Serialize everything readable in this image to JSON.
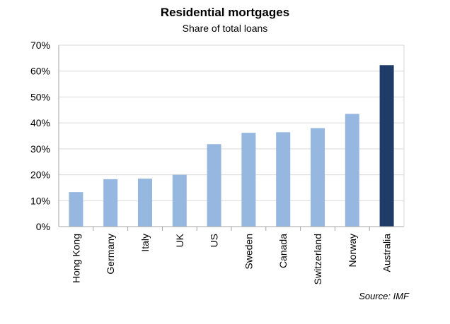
{
  "chart_data": {
    "type": "bar",
    "title": "Residential mortgages",
    "subtitle": "Share of total loans",
    "source": "Source: IMF",
    "categories": [
      "Hong Kong",
      "Germany",
      "Italy",
      "UK",
      "US",
      "Sweden",
      "Canada",
      "Switzerland",
      "Norway",
      "Australia"
    ],
    "values": [
      13.3,
      18.3,
      18.5,
      20.0,
      31.8,
      36.2,
      36.4,
      38.0,
      43.5,
      62.3
    ],
    "ylim": [
      0,
      70
    ],
    "yticks": [
      "0%",
      "10%",
      "20%",
      "30%",
      "40%",
      "50%",
      "60%",
      "70%"
    ],
    "grid": true,
    "colors": {
      "default": "#95b7e0",
      "highlight": "#1f3b68",
      "highlight_category": "Australia"
    }
  }
}
